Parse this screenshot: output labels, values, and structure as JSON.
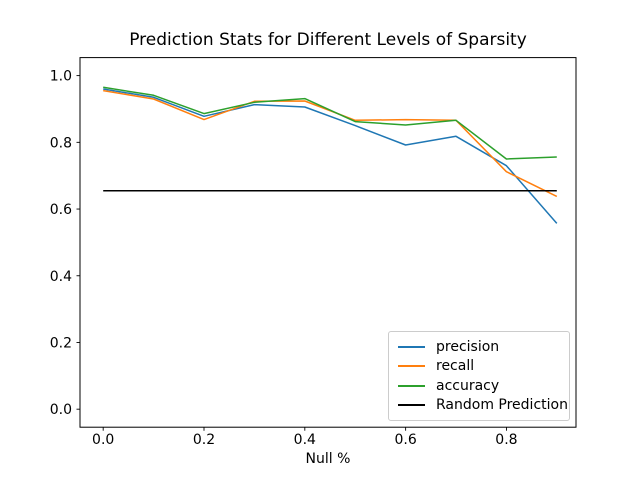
{
  "chart_data": {
    "type": "line",
    "title": "Prediction Stats for Different Levels of Sparsity",
    "xlabel": "Null %",
    "ylabel": "",
    "x": [
      0.0,
      0.1,
      0.2,
      0.3,
      0.4,
      0.5,
      0.6,
      0.7,
      0.8,
      0.9
    ],
    "series": [
      {
        "name": "precision",
        "color": "#1f77b4",
        "values": [
          0.96,
          0.935,
          0.878,
          0.913,
          0.906,
          0.85,
          0.792,
          0.818,
          0.73,
          0.557
        ]
      },
      {
        "name": "recall",
        "color": "#ff7f0e",
        "values": [
          0.955,
          0.93,
          0.868,
          0.923,
          0.924,
          0.866,
          0.868,
          0.866,
          0.712,
          0.638
        ]
      },
      {
        "name": "accuracy",
        "color": "#2ca02c",
        "values": [
          0.965,
          0.941,
          0.886,
          0.92,
          0.931,
          0.862,
          0.852,
          0.866,
          0.75,
          0.756
        ]
      },
      {
        "name": "Random Prediction",
        "color": "#000000",
        "values": [
          0.655,
          0.655,
          0.655,
          0.655,
          0.655,
          0.655,
          0.655,
          0.655,
          0.655,
          0.655
        ]
      }
    ],
    "xticks": {
      "values": [
        0.0,
        0.2,
        0.4,
        0.6,
        0.8
      ],
      "labels": [
        "0.0",
        "0.2",
        "0.4",
        "0.6",
        "0.8"
      ]
    },
    "yticks": {
      "values": [
        0.0,
        0.2,
        0.4,
        0.6,
        0.8,
        1.0
      ],
      "labels": [
        "0.0",
        "0.2",
        "0.4",
        "0.6",
        "0.8",
        "1.0"
      ]
    },
    "xlim": [
      -0.046,
      0.938
    ],
    "ylim": [
      -0.054,
      1.054
    ],
    "legend_position": "lower right",
    "grid": false,
    "line_width": 1.5
  }
}
